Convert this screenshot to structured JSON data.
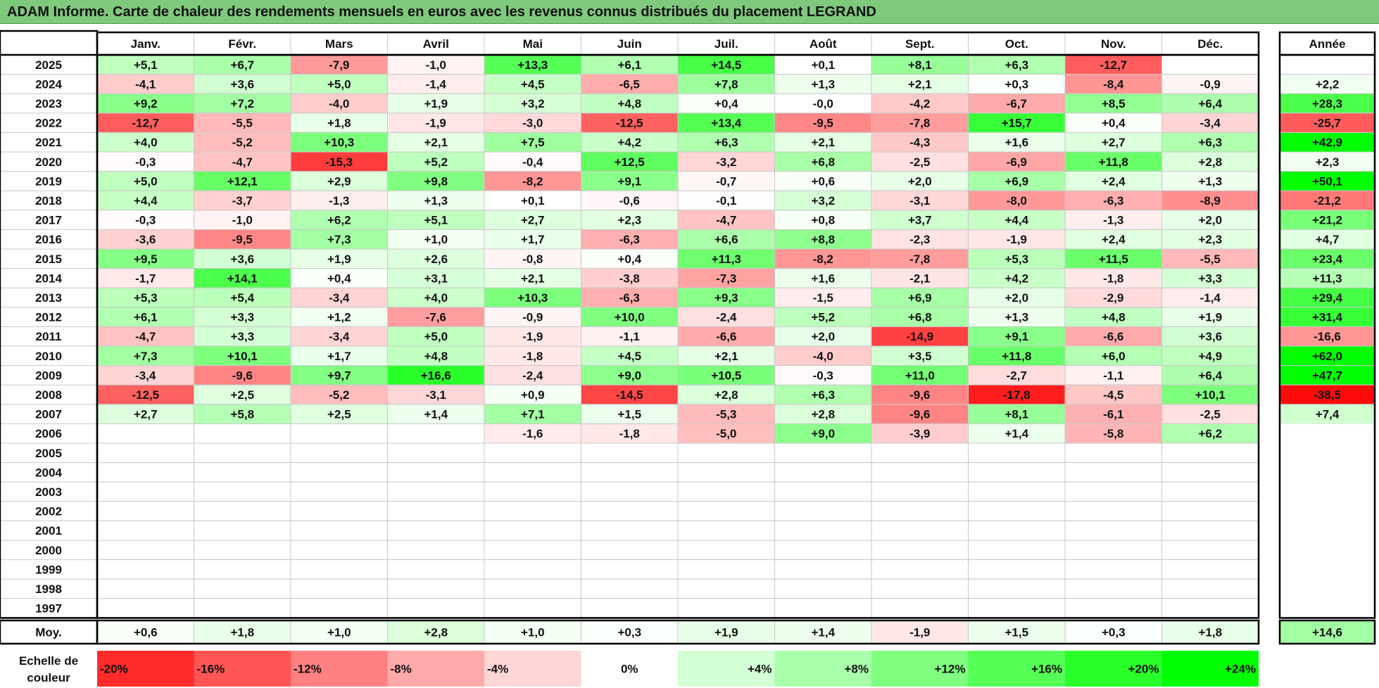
{
  "title": "ADAM Informe. Carte de chaleur des rendements mensuels en euros avec les revenus connus distribués du placement LEGRAND",
  "chart_data": {
    "type": "heatmap",
    "title": "ADAM Informe. Carte de chaleur des rendements mensuels en euros avec les revenus connus distribués du placement LEGRAND",
    "columns": [
      "Janv.",
      "Févr.",
      "Mars",
      "Avril",
      "Mai",
      "Juin",
      "Juil.",
      "Août",
      "Sept.",
      "Oct.",
      "Nov.",
      "Déc."
    ],
    "year_column_label": "Année",
    "rows": [
      {
        "year": "2025",
        "values": [
          "+5,1",
          "+6,7",
          "-7,9",
          "-1,0",
          "+13,3",
          "+6,1",
          "+14,5",
          "+0,1",
          "+8,1",
          "+6,3",
          "-12,7",
          ""
        ],
        "annual": ""
      },
      {
        "year": "2024",
        "values": [
          "-4,1",
          "+3,6",
          "+5,0",
          "-1,4",
          "+4,5",
          "-6,5",
          "+7,8",
          "+1,3",
          "+2,1",
          "+0,3",
          "-8,4",
          "-0,9"
        ],
        "annual": "+2,2"
      },
      {
        "year": "2023",
        "values": [
          "+9,2",
          "+7,2",
          "-4,0",
          "+1,9",
          "+3,2",
          "+4,8",
          "+0,4",
          "-0,0",
          "-4,2",
          "-6,7",
          "+8,5",
          "+6,4"
        ],
        "annual": "+28,3"
      },
      {
        "year": "2022",
        "values": [
          "-12,7",
          "-5,5",
          "+1,8",
          "-1,9",
          "-3,0",
          "-12,5",
          "+13,4",
          "-9,5",
          "-7,8",
          "+15,7",
          "+0,4",
          "-3,4"
        ],
        "annual": "-25,7"
      },
      {
        "year": "2021",
        "values": [
          "+4,0",
          "-5,2",
          "+10,3",
          "+2,1",
          "+7,5",
          "+4,2",
          "+6,3",
          "+2,1",
          "-4,3",
          "+1,6",
          "+2,7",
          "+6,3"
        ],
        "annual": "+42,9"
      },
      {
        "year": "2020",
        "values": [
          "-0,3",
          "-4,7",
          "-15,3",
          "+5,2",
          "-0,4",
          "+12,5",
          "-3,2",
          "+6,8",
          "-2,5",
          "-6,9",
          "+11,8",
          "+2,8"
        ],
        "annual": "+2,3"
      },
      {
        "year": "2019",
        "values": [
          "+5,0",
          "+12,1",
          "+2,9",
          "+9,8",
          "-8,2",
          "+9,1",
          "-0,7",
          "+0,6",
          "+2,0",
          "+6,9",
          "+2,4",
          "+1,3"
        ],
        "annual": "+50,1"
      },
      {
        "year": "2018",
        "values": [
          "+4,4",
          "-3,7",
          "-1,3",
          "+1,3",
          "+0,1",
          "-0,6",
          "-0,1",
          "+3,2",
          "-3,1",
          "-8,0",
          "-6,3",
          "-8,9"
        ],
        "annual": "-21,2"
      },
      {
        "year": "2017",
        "values": [
          "-0,3",
          "-1,0",
          "+6,2",
          "+5,1",
          "+2,7",
          "+2,3",
          "-4,7",
          "+0,8",
          "+3,7",
          "+4,4",
          "-1,3",
          "+2,0"
        ],
        "annual": "+21,2"
      },
      {
        "year": "2016",
        "values": [
          "-3,6",
          "-9,5",
          "+7,3",
          "+1,0",
          "+1,7",
          "-6,3",
          "+6,6",
          "+8,8",
          "-2,3",
          "-1,9",
          "+2,4",
          "+2,3"
        ],
        "annual": "+4,7"
      },
      {
        "year": "2015",
        "values": [
          "+9,5",
          "+3,6",
          "+1,9",
          "+2,6",
          "-0,8",
          "+0,4",
          "+11,3",
          "-8,2",
          "-7,8",
          "+5,3",
          "+11,5",
          "-5,5"
        ],
        "annual": "+23,4"
      },
      {
        "year": "2014",
        "values": [
          "-1,7",
          "+14,1",
          "+0,4",
          "+3,1",
          "+2,1",
          "-3,8",
          "-7,3",
          "+1,6",
          "-2,1",
          "+4,2",
          "-1,8",
          "+3,3"
        ],
        "annual": "+11,3"
      },
      {
        "year": "2013",
        "values": [
          "+5,3",
          "+5,4",
          "-3,4",
          "+4,0",
          "+10,3",
          "-6,3",
          "+9,3",
          "-1,5",
          "+6,9",
          "+2,0",
          "-2,9",
          "-1,4"
        ],
        "annual": "+29,4"
      },
      {
        "year": "2012",
        "values": [
          "+6,1",
          "+3,3",
          "+1,2",
          "-7,6",
          "-0,9",
          "+10,0",
          "-2,4",
          "+5,2",
          "+6,8",
          "+1,3",
          "+4,8",
          "+1,9"
        ],
        "annual": "+31,4"
      },
      {
        "year": "2011",
        "values": [
          "-4,7",
          "+3,3",
          "-3,4",
          "+5,0",
          "-1,9",
          "-1,1",
          "-6,6",
          "+2,0",
          "-14,9",
          "+9,1",
          "-6,6",
          "+3,6"
        ],
        "annual": "-16,6"
      },
      {
        "year": "2010",
        "values": [
          "+7,3",
          "+10,1",
          "+1,7",
          "+4,8",
          "-1,8",
          "+4,5",
          "+2,1",
          "-4,0",
          "+3,5",
          "+11,8",
          "+6,0",
          "+4,9"
        ],
        "annual": "+62,0"
      },
      {
        "year": "2009",
        "values": [
          "-3,4",
          "-9,6",
          "+9,7",
          "+16,6",
          "-2,4",
          "+9,0",
          "+10,5",
          "-0,3",
          "+11,0",
          "-2,7",
          "-1,1",
          "+6,4"
        ],
        "annual": "+47,7"
      },
      {
        "year": "2008",
        "values": [
          "-12,5",
          "+2,5",
          "-5,2",
          "-3,1",
          "+0,9",
          "-14,5",
          "+2,8",
          "+6,3",
          "-9,6",
          "-17,8",
          "-4,5",
          "+10,1"
        ],
        "annual": "-38,5"
      },
      {
        "year": "2007",
        "values": [
          "+2,7",
          "+5,8",
          "+2,5",
          "+1,4",
          "+7,1",
          "+1,5",
          "-5,3",
          "+2,8",
          "-9,6",
          "+8,1",
          "-6,1",
          "-2,5"
        ],
        "annual": "+7,4"
      },
      {
        "year": "2006",
        "values": [
          "",
          "",
          "",
          "",
          "-1,6",
          "-1,8",
          "-5,0",
          "+9,0",
          "-3,9",
          "+1,4",
          "-5,8",
          "+6,2"
        ],
        "annual": ""
      },
      {
        "year": "2005",
        "values": [
          "",
          "",
          "",
          "",
          "",
          "",
          "",
          "",
          "",
          "",
          "",
          ""
        ],
        "annual": ""
      },
      {
        "year": "2004",
        "values": [
          "",
          "",
          "",
          "",
          "",
          "",
          "",
          "",
          "",
          "",
          "",
          ""
        ],
        "annual": ""
      },
      {
        "year": "2003",
        "values": [
          "",
          "",
          "",
          "",
          "",
          "",
          "",
          "",
          "",
          "",
          "",
          ""
        ],
        "annual": ""
      },
      {
        "year": "2002",
        "values": [
          "",
          "",
          "",
          "",
          "",
          "",
          "",
          "",
          "",
          "",
          "",
          ""
        ],
        "annual": ""
      },
      {
        "year": "2001",
        "values": [
          "",
          "",
          "",
          "",
          "",
          "",
          "",
          "",
          "",
          "",
          "",
          ""
        ],
        "annual": ""
      },
      {
        "year": "2000",
        "values": [
          "",
          "",
          "",
          "",
          "",
          "",
          "",
          "",
          "",
          "",
          "",
          ""
        ],
        "annual": ""
      },
      {
        "year": "1999",
        "values": [
          "",
          "",
          "",
          "",
          "",
          "",
          "",
          "",
          "",
          "",
          "",
          ""
        ],
        "annual": ""
      },
      {
        "year": "1998",
        "values": [
          "",
          "",
          "",
          "",
          "",
          "",
          "",
          "",
          "",
          "",
          "",
          ""
        ],
        "annual": ""
      },
      {
        "year": "1997",
        "values": [
          "",
          "",
          "",
          "",
          "",
          "",
          "",
          "",
          "",
          "",
          "",
          ""
        ],
        "annual": ""
      }
    ],
    "average": {
      "label": "Moy.",
      "values": [
        "+0,6",
        "+1,8",
        "+1,0",
        "+2,8",
        "+1,0",
        "+0,3",
        "+1,9",
        "+1,4",
        "-1,9",
        "+1,5",
        "+0,3",
        "+1,8"
      ],
      "annual": "+14,6"
    },
    "scale": {
      "label": "Echelle de couleur",
      "steps": [
        "-20%",
        "-16%",
        "-12%",
        "-8%",
        "-4%",
        "0%",
        "+4%",
        "+8%",
        "+12%",
        "+16%",
        "+20%",
        "+24%"
      ]
    },
    "color_scale": {
      "negative": "#ff0000",
      "neutral": "#ffffff",
      "positive": "#00ff00"
    }
  }
}
